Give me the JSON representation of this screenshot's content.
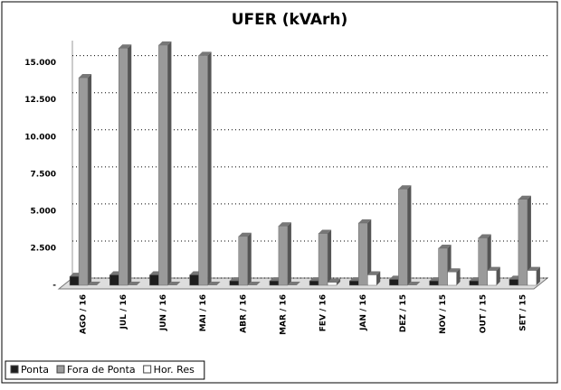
{
  "chart_data": {
    "type": "bar",
    "title": "UFER (kVArh)",
    "categories": [
      "AGO / 16",
      "JUL / 16",
      "JUN / 16",
      "MAI / 16",
      "ABR / 16",
      "MAR / 16",
      "FEV / 16",
      "JAN / 16",
      "DEZ / 15",
      "NOV / 15",
      "OUT / 15",
      "SET / 15"
    ],
    "series": [
      {
        "name": "Ponta",
        "color": "#1e1e1e",
        "values": [
          600,
          700,
          700,
          700,
          300,
          300,
          300,
          300,
          400,
          300,
          300,
          400
        ]
      },
      {
        "name": "Fora de Ponta",
        "color": "#9a9a9a",
        "values": [
          14000,
          16000,
          16200,
          15500,
          3300,
          4000,
          3500,
          4200,
          6500,
          2500,
          3200,
          5800
        ]
      },
      {
        "name": "Hor. Res",
        "color": "#ffffff",
        "values": [
          0,
          0,
          0,
          0,
          0,
          0,
          200,
          700,
          0,
          900,
          1000,
          1000
        ]
      }
    ],
    "ylim": [
      0,
      16500
    ],
    "yticks": [
      {
        "value": 0,
        "label": "-"
      },
      {
        "value": 2500,
        "label": "2.500"
      },
      {
        "value": 5000,
        "label": "5.000"
      },
      {
        "value": 7500,
        "label": "7.500"
      },
      {
        "value": 10000,
        "label": "10.000"
      },
      {
        "value": 12500,
        "label": "12.500"
      },
      {
        "value": 15000,
        "label": "15.000"
      }
    ],
    "grid": true
  }
}
